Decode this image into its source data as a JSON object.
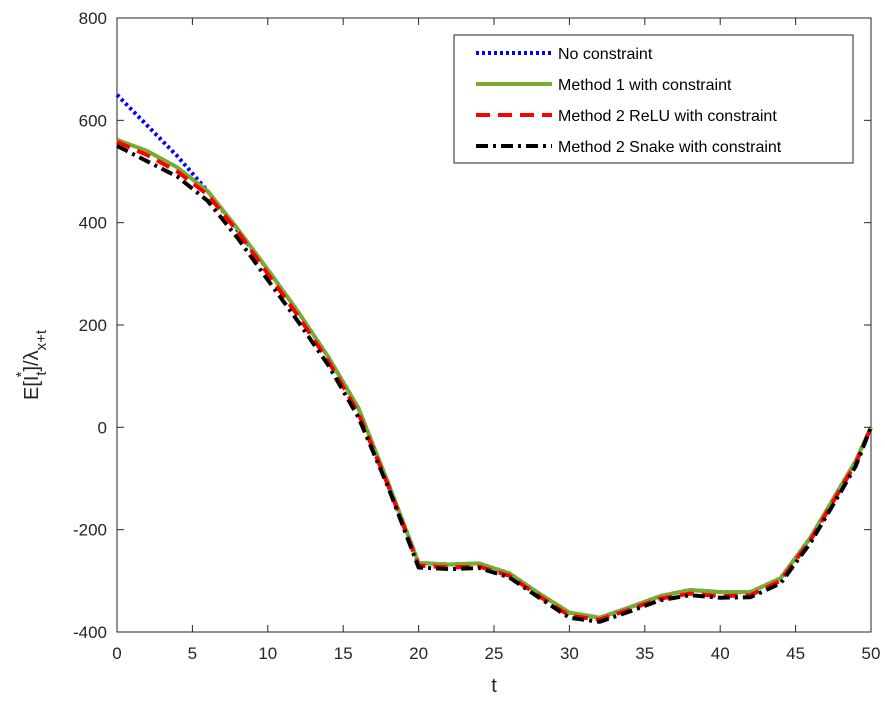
{
  "chart_data": {
    "type": "line",
    "title": "",
    "xlabel": "t",
    "ylabel": {
      "main": "E[I",
      "sub1": "t",
      "sup1": "*",
      "mid": "]/λ",
      "sub2": "x+t"
    },
    "xlim": [
      0,
      50
    ],
    "ylim": [
      -400,
      800
    ],
    "xticks": [
      0,
      5,
      10,
      15,
      20,
      25,
      30,
      35,
      40,
      45,
      50
    ],
    "yticks": [
      -400,
      -200,
      0,
      200,
      400,
      600,
      800
    ],
    "grid": false,
    "legend_position": "top-right",
    "x": [
      0,
      2,
      4,
      6,
      8,
      10,
      12,
      14,
      16,
      18,
      20,
      22,
      24,
      26,
      28,
      30,
      32,
      34,
      36,
      38,
      40,
      42,
      44,
      46,
      48,
      49,
      50
    ],
    "series": [
      {
        "name": "No constraint",
        "color": "#0000ff",
        "style": "dotted",
        "values": [
          650,
          590,
          530,
          462,
          385,
          308,
          226,
          138,
          38,
          -110,
          -265,
          -268,
          -266,
          -285,
          -325,
          -362,
          -372,
          -352,
          -330,
          -318,
          -322,
          -322,
          -295,
          -215,
          -115,
          -65,
          0
        ]
      },
      {
        "name": "Method 1 with constraint",
        "color": "#77ac30",
        "style": "solid",
        "values": [
          562,
          540,
          508,
          462,
          388,
          308,
          226,
          138,
          38,
          -110,
          -265,
          -268,
          -266,
          -285,
          -325,
          -362,
          -372,
          -352,
          -330,
          -318,
          -322,
          -322,
          -295,
          -215,
          -115,
          -65,
          0
        ]
      },
      {
        "name": "Method 2 ReLU with constraint",
        "color": "#ff0000",
        "style": "dashed",
        "values": [
          558,
          532,
          500,
          455,
          383,
          300,
          218,
          130,
          28,
          -115,
          -270,
          -274,
          -272,
          -290,
          -330,
          -368,
          -376,
          -356,
          -335,
          -325,
          -330,
          -328,
          -300,
          -220,
          -120,
          -70,
          0
        ]
      },
      {
        "name": "Method 2 Snake with constraint",
        "color": "#000000",
        "style": "dashdot",
        "values": [
          550,
          520,
          490,
          443,
          370,
          288,
          207,
          122,
          20,
          -118,
          -274,
          -277,
          -275,
          -293,
          -333,
          -372,
          -380,
          -360,
          -338,
          -328,
          -333,
          -332,
          -305,
          -225,
          -126,
          -75,
          0
        ]
      }
    ]
  }
}
